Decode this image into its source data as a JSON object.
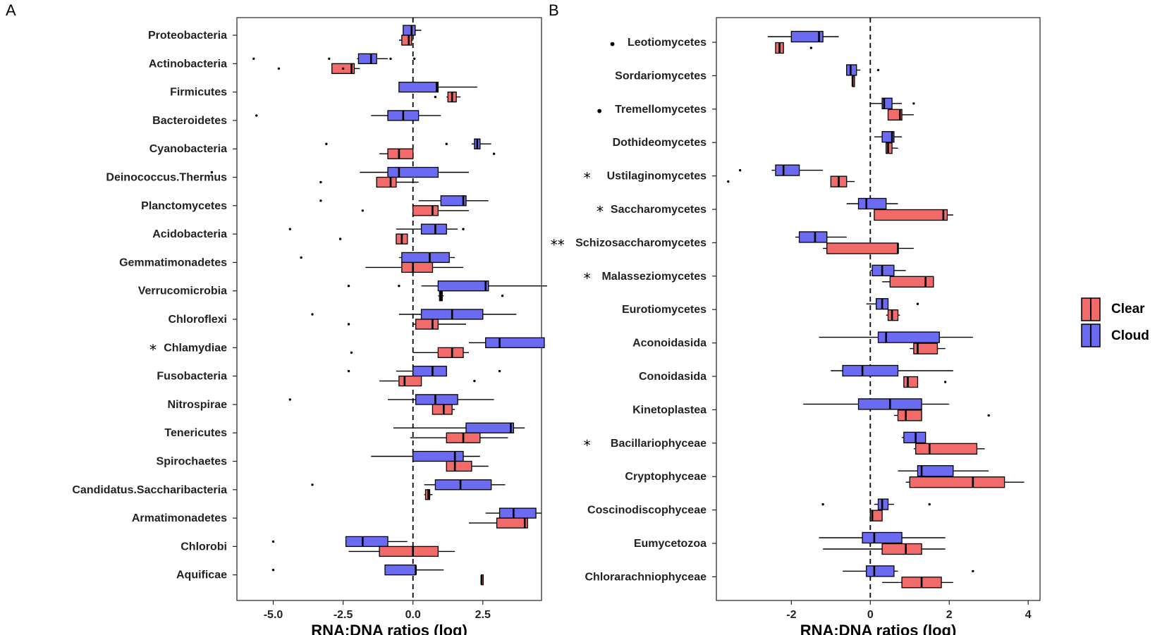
{
  "chart_data": [
    {
      "panel": "A",
      "type": "boxplot",
      "orientation": "horizontal",
      "xlabel": "RNA:DNA ratios (log)",
      "ylabel": "",
      "xlim": [
        -6.3,
        4.6
      ],
      "xticks": [
        -5.0,
        -2.5,
        0.0,
        2.5
      ],
      "xtick_labels": [
        "-5.0",
        "-2.5",
        "0.0",
        "2.5"
      ],
      "reference_line": 0,
      "categories": [
        {
          "label": "Proteobacteria",
          "sig": "",
          "cloud": {
            "wlo": -0.3,
            "q1": -0.35,
            "med": -0.05,
            "q3": 0.08,
            "whi": 0.3,
            "out": []
          },
          "clear": {
            "wlo": -0.5,
            "q1": -0.4,
            "med": -0.15,
            "q3": -0.05,
            "whi": 0.0,
            "out": []
          }
        },
        {
          "label": "Actinobacteria",
          "sig": "",
          "cloud": {
            "wlo": -2.0,
            "q1": -1.95,
            "med": -1.5,
            "q3": -1.3,
            "whi": -0.9,
            "out": [
              -5.7,
              -3.0,
              -0.8,
              0.05
            ]
          },
          "clear": {
            "wlo": -2.9,
            "q1": -2.9,
            "med": -2.2,
            "q3": -2.1,
            "whi": -1.9,
            "out": [
              -4.8,
              -2.5
            ]
          }
        },
        {
          "label": "Firmicutes",
          "sig": "",
          "cloud": {
            "wlo": -0.5,
            "q1": -0.5,
            "med": 0.85,
            "q3": 0.9,
            "whi": 2.3,
            "out": []
          },
          "clear": {
            "wlo": 1.2,
            "q1": 1.25,
            "med": 1.4,
            "q3": 1.55,
            "whi": 1.7,
            "out": [
              0.8
            ]
          }
        },
        {
          "label": "Bacteroidetes",
          "sig": "",
          "cloud": {
            "wlo": -1.5,
            "q1": -0.9,
            "med": -0.35,
            "q3": 0.2,
            "whi": 1.0,
            "out": [
              -5.6
            ]
          }
        },
        {
          "label": "Cyanobacteria",
          "sig": "",
          "cloud": {
            "wlo": 2.1,
            "q1": 2.2,
            "med": 2.3,
            "q3": 2.4,
            "whi": 2.8,
            "out": [
              -3.1,
              1.2
            ]
          },
          "clear": {
            "wlo": -1.2,
            "q1": -0.9,
            "med": -0.5,
            "q3": 0.0,
            "whi": 0.0,
            "out": [
              2.9
            ]
          }
        },
        {
          "label": "Deinococcus.Thermus",
          "sig": "",
          "cloud": {
            "wlo": -1.9,
            "q1": -0.9,
            "med": -0.5,
            "q3": 0.9,
            "whi": 2.0,
            "out": [
              -7.2
            ]
          },
          "clear": {
            "wlo": -1.3,
            "q1": -1.3,
            "med": -0.8,
            "q3": -0.6,
            "whi": 0.2,
            "out": [
              -3.3
            ]
          }
        },
        {
          "label": "Planctomycetes",
          "sig": "",
          "cloud": {
            "wlo": 0.2,
            "q1": 1.0,
            "med": 1.8,
            "q3": 1.9,
            "whi": 2.7,
            "out": [
              -3.3
            ]
          },
          "clear": {
            "wlo": 0.0,
            "q1": 0.0,
            "med": 0.7,
            "q3": 0.9,
            "whi": 2.0,
            "out": [
              -1.8
            ]
          }
        },
        {
          "label": "Acidobacteria",
          "sig": "",
          "cloud": {
            "wlo": -0.6,
            "q1": 0.3,
            "med": 0.8,
            "q3": 1.2,
            "whi": 1.6,
            "out": [
              -4.4,
              1.8
            ]
          },
          "clear": {
            "wlo": -0.6,
            "q1": -0.6,
            "med": -0.4,
            "q3": -0.2,
            "whi": -0.2,
            "out": [
              -2.6
            ]
          }
        },
        {
          "label": "Gemmatimonadetes",
          "sig": "",
          "cloud": {
            "wlo": -0.5,
            "q1": -0.4,
            "med": 0.6,
            "q3": 1.3,
            "whi": 1.5,
            "out": [
              -4.0
            ]
          },
          "clear": {
            "wlo": -1.7,
            "q1": -0.4,
            "med": 0.0,
            "q3": 0.7,
            "whi": 1.8,
            "out": []
          }
        },
        {
          "label": "Verrucomicrobia",
          "sig": "",
          "cloud": {
            "wlo": 0.3,
            "q1": 0.9,
            "med": 2.6,
            "q3": 2.7,
            "whi": 4.8,
            "out": [
              -2.3,
              -0.5
            ]
          },
          "clear": {
            "wlo": 0.9,
            "q1": 0.95,
            "med": 1.0,
            "q3": 1.05,
            "whi": 1.1,
            "out": [
              3.2
            ]
          }
        },
        {
          "label": "Chloroflexi",
          "sig": "",
          "cloud": {
            "wlo": -0.5,
            "q1": 0.3,
            "med": 1.4,
            "q3": 2.5,
            "whi": 3.7,
            "out": [
              -3.6
            ]
          },
          "clear": {
            "wlo": 0.0,
            "q1": 0.1,
            "med": 0.7,
            "q3": 0.9,
            "whi": 1.9,
            "out": [
              -2.3
            ]
          }
        },
        {
          "label": "Chlamydiae",
          "sig": "*",
          "cloud": {
            "wlo": 2.0,
            "q1": 2.6,
            "med": 3.1,
            "q3": 4.7,
            "whi": 4.7,
            "out": []
          },
          "clear": {
            "wlo": 0.0,
            "q1": 0.9,
            "med": 1.4,
            "q3": 1.8,
            "whi": 2.0,
            "out": [
              -2.2
            ]
          }
        },
        {
          "label": "Fusobacteria",
          "sig": "",
          "cloud": {
            "wlo": -0.6,
            "q1": 0.0,
            "med": 0.7,
            "q3": 1.2,
            "whi": 1.2,
            "out": [
              -2.3,
              3.1
            ]
          },
          "clear": {
            "wlo": -1.2,
            "q1": -0.5,
            "med": -0.3,
            "q3": 0.3,
            "whi": 0.3,
            "out": [
              2.2
            ]
          }
        },
        {
          "label": "Nitrospirae",
          "sig": "",
          "cloud": {
            "wlo": -0.9,
            "q1": 0.1,
            "med": 0.8,
            "q3": 1.6,
            "whi": 2.9,
            "out": [
              -4.4
            ]
          },
          "clear": {
            "wlo": 0.7,
            "q1": 0.7,
            "med": 1.1,
            "q3": 1.4,
            "whi": 1.5,
            "out": []
          }
        },
        {
          "label": "Tenericutes",
          "sig": "",
          "cloud": {
            "wlo": -0.7,
            "q1": 1.9,
            "med": 3.5,
            "q3": 3.6,
            "whi": 4.0,
            "out": []
          },
          "clear": {
            "wlo": -0.1,
            "q1": 1.2,
            "med": 1.8,
            "q3": 2.4,
            "whi": 3.4,
            "out": []
          }
        },
        {
          "label": "Spirochaetes",
          "sig": "",
          "cloud": {
            "wlo": -1.5,
            "q1": 0.0,
            "med": 1.5,
            "q3": 1.8,
            "whi": 2.4,
            "out": []
          },
          "clear": {
            "wlo": 1.2,
            "q1": 1.2,
            "med": 1.5,
            "q3": 2.1,
            "whi": 2.7,
            "out": []
          }
        },
        {
          "label": "Candidatus.Saccharibacteria",
          "sig": "",
          "cloud": {
            "wlo": 0.4,
            "q1": 0.8,
            "med": 1.7,
            "q3": 2.8,
            "whi": 3.3,
            "out": [
              -3.6
            ]
          },
          "clear": {
            "wlo": 0.4,
            "q1": 0.45,
            "med": 0.55,
            "q3": 0.6,
            "whi": 0.7,
            "out": []
          }
        },
        {
          "label": "Armatimonadetes",
          "sig": "",
          "cloud": {
            "wlo": 2.6,
            "q1": 3.1,
            "med": 3.6,
            "q3": 4.4,
            "whi": 4.6,
            "out": []
          },
          "clear": {
            "wlo": 2.0,
            "q1": 3.0,
            "med": 4.0,
            "q3": 4.1,
            "whi": 4.1,
            "out": []
          }
        },
        {
          "label": "Chlorobi",
          "sig": "",
          "cloud": {
            "wlo": -2.4,
            "q1": -2.4,
            "med": -1.8,
            "q3": -0.9,
            "whi": -0.2,
            "out": [
              -5.0
            ]
          },
          "clear": {
            "wlo": -2.3,
            "q1": -1.2,
            "med": 0.0,
            "q3": 0.9,
            "whi": 1.5,
            "out": []
          }
        },
        {
          "label": "Aquificae",
          "sig": "",
          "cloud": {
            "wlo": -1.0,
            "q1": -1.0,
            "med": 0.1,
            "q3": 0.1,
            "whi": 1.1,
            "out": [
              -5.0
            ]
          },
          "clear": {
            "wlo": 2.45,
            "q1": 2.45,
            "med": 2.45,
            "q3": 2.45,
            "whi": 2.45,
            "out": []
          }
        }
      ]
    },
    {
      "panel": "B",
      "type": "boxplot",
      "orientation": "horizontal",
      "xlabel": "RNA:DNA ratios (log)",
      "ylabel": "",
      "xlim": [
        -3.9,
        4.3
      ],
      "xticks": [
        -2,
        0,
        2,
        4
      ],
      "xtick_labels": [
        "-2",
        "0",
        "2",
        "4"
      ],
      "reference_line": 0,
      "legend": {
        "position": "right",
        "entries": [
          {
            "name": "Clear",
            "color": "#F26B6B"
          },
          {
            "name": "Cloud",
            "color": "#6B6BF2"
          }
        ]
      },
      "categories": [
        {
          "label": "Leotiomycetes",
          "sig": "•",
          "cloud": {
            "wlo": -2.6,
            "q1": -2.0,
            "med": -1.3,
            "q3": -1.2,
            "whi": -0.8,
            "out": []
          },
          "clear": {
            "wlo": -2.4,
            "q1": -2.4,
            "med": -2.3,
            "q3": -2.2,
            "whi": -2.2,
            "out": [
              -1.5
            ]
          }
        },
        {
          "label": "Sordariomycetes",
          "sig": "",
          "cloud": {
            "wlo": -0.6,
            "q1": -0.6,
            "med": -0.5,
            "q3": -0.35,
            "whi": -0.25,
            "out": [
              0.2
            ]
          },
          "clear": {
            "wlo": -0.45,
            "q1": -0.45,
            "med": -0.45,
            "q3": -0.4,
            "whi": -0.4,
            "out": []
          }
        },
        {
          "label": "Tremellomycetes",
          "sig": "•",
          "cloud": {
            "wlo": 0.0,
            "q1": 0.3,
            "med": 0.35,
            "q3": 0.55,
            "whi": 0.8,
            "out": [
              1.1
            ]
          },
          "clear": {
            "wlo": 0.45,
            "q1": 0.45,
            "med": 0.75,
            "q3": 0.8,
            "whi": 1.1,
            "out": []
          }
        },
        {
          "label": "Dothideomycetes",
          "sig": "",
          "cloud": {
            "wlo": 0.1,
            "q1": 0.3,
            "med": 0.55,
            "q3": 0.6,
            "whi": 0.8,
            "out": []
          },
          "clear": {
            "wlo": 0.4,
            "q1": 0.4,
            "med": 0.45,
            "q3": 0.55,
            "whi": 0.7,
            "out": []
          }
        },
        {
          "label": "Ustilaginomycetes",
          "sig": "*",
          "cloud": {
            "wlo": -2.5,
            "q1": -2.4,
            "med": -2.2,
            "q3": -1.8,
            "whi": -1.2,
            "out": [
              -3.3
            ]
          },
          "clear": {
            "wlo": -1.0,
            "q1": -1.0,
            "med": -0.8,
            "q3": -0.6,
            "whi": -0.4,
            "out": [
              -3.6
            ]
          }
        },
        {
          "label": "Saccharomycetes",
          "sig": "*",
          "cloud": {
            "wlo": -0.6,
            "q1": -0.3,
            "med": -0.1,
            "q3": 0.4,
            "whi": 0.7,
            "out": []
          },
          "clear": {
            "wlo": 0.1,
            "q1": 0.1,
            "med": 1.85,
            "q3": 1.95,
            "whi": 2.1,
            "out": []
          }
        },
        {
          "label": "Schizosaccharomycetes",
          "sig": "**",
          "cloud": {
            "wlo": -1.9,
            "q1": -1.8,
            "med": -1.4,
            "q3": -1.1,
            "whi": -0.6,
            "out": []
          },
          "clear": {
            "wlo": -1.2,
            "q1": -1.1,
            "med": 0.7,
            "q3": 0.7,
            "whi": 1.1,
            "out": []
          }
        },
        {
          "label": "Malasseziomycetes",
          "sig": "*",
          "cloud": {
            "wlo": 0.0,
            "q1": 0.05,
            "med": 0.3,
            "q3": 0.6,
            "whi": 0.9,
            "out": []
          },
          "clear": {
            "wlo": 0.3,
            "q1": 0.5,
            "med": 1.4,
            "q3": 1.6,
            "whi": 1.6,
            "out": []
          }
        },
        {
          "label": "Eurotiomycetes",
          "sig": "",
          "cloud": {
            "wlo": -0.1,
            "q1": 0.15,
            "med": 0.3,
            "q3": 0.45,
            "whi": 0.45,
            "out": [
              1.2
            ]
          },
          "clear": {
            "wlo": 0.4,
            "q1": 0.45,
            "med": 0.55,
            "q3": 0.7,
            "whi": 0.75,
            "out": []
          }
        },
        {
          "label": "Aconoidasida",
          "sig": "",
          "cloud": {
            "wlo": -1.3,
            "q1": 0.2,
            "med": 0.4,
            "q3": 1.75,
            "whi": 2.6,
            "out": []
          },
          "clear": {
            "wlo": 1.0,
            "q1": 1.1,
            "med": 1.2,
            "q3": 1.7,
            "whi": 1.9,
            "out": []
          }
        },
        {
          "label": "Conoidasida",
          "sig": "",
          "cloud": {
            "wlo": -1.0,
            "q1": -0.7,
            "med": -0.2,
            "q3": 0.7,
            "whi": 2.1,
            "out": []
          },
          "clear": {
            "wlo": 0.85,
            "q1": 0.85,
            "med": 0.95,
            "q3": 1.2,
            "whi": 1.2,
            "out": [
              1.9
            ]
          }
        },
        {
          "label": "Kinetoplastea",
          "sig": "",
          "cloud": {
            "wlo": -1.7,
            "q1": -0.3,
            "med": 0.5,
            "q3": 1.3,
            "whi": 2.0,
            "out": []
          },
          "clear": {
            "wlo": 0.6,
            "q1": 0.7,
            "med": 0.9,
            "q3": 1.3,
            "whi": 1.3,
            "out": [
              3.0
            ]
          }
        },
        {
          "label": "Bacillariophyceae",
          "sig": "*",
          "cloud": {
            "wlo": 0.8,
            "q1": 0.85,
            "med": 1.15,
            "q3": 1.4,
            "whi": 1.4,
            "out": []
          },
          "clear": {
            "wlo": 1.1,
            "q1": 1.15,
            "med": 1.5,
            "q3": 2.7,
            "whi": 2.9,
            "out": []
          }
        },
        {
          "label": "Cryptophyceae",
          "sig": "",
          "cloud": {
            "wlo": 0.7,
            "q1": 1.2,
            "med": 1.3,
            "q3": 2.1,
            "whi": 3.0,
            "out": []
          },
          "clear": {
            "wlo": 0.9,
            "q1": 1.0,
            "med": 2.6,
            "q3": 3.4,
            "whi": 3.9,
            "out": []
          }
        },
        {
          "label": "Coscinodiscophyceae",
          "sig": "",
          "cloud": {
            "wlo": 0.1,
            "q1": 0.2,
            "med": 0.3,
            "q3": 0.45,
            "whi": 0.6,
            "out": [
              -1.2,
              1.5
            ]
          },
          "clear": {
            "wlo": 0.0,
            "q1": 0.0,
            "med": 0.05,
            "q3": 0.3,
            "whi": 0.3,
            "out": []
          }
        },
        {
          "label": "Eumycetozoa",
          "sig": "",
          "cloud": {
            "wlo": -1.3,
            "q1": -0.2,
            "med": 0.1,
            "q3": 0.8,
            "whi": 1.9,
            "out": []
          },
          "clear": {
            "wlo": -1.2,
            "q1": 0.3,
            "med": 0.9,
            "q3": 1.3,
            "whi": 1.9,
            "out": []
          }
        },
        {
          "label": "Chlorarachniophyceae",
          "sig": "",
          "cloud": {
            "wlo": -0.7,
            "q1": -0.1,
            "med": 0.1,
            "q3": 0.6,
            "whi": 0.7,
            "out": [
              2.6
            ]
          },
          "clear": {
            "wlo": 0.3,
            "q1": 0.8,
            "med": 1.3,
            "q3": 1.8,
            "whi": 2.1,
            "out": []
          }
        }
      ]
    }
  ],
  "legend": [
    {
      "name": "Clear",
      "color": "#F26B6B"
    },
    {
      "name": "Cloud",
      "color": "#6B6BF2"
    }
  ],
  "colors": {
    "clear": "#F26B6B",
    "cloud": "#6B6BF2",
    "stroke": "#000000"
  },
  "panel_letters": [
    "A",
    "B"
  ]
}
